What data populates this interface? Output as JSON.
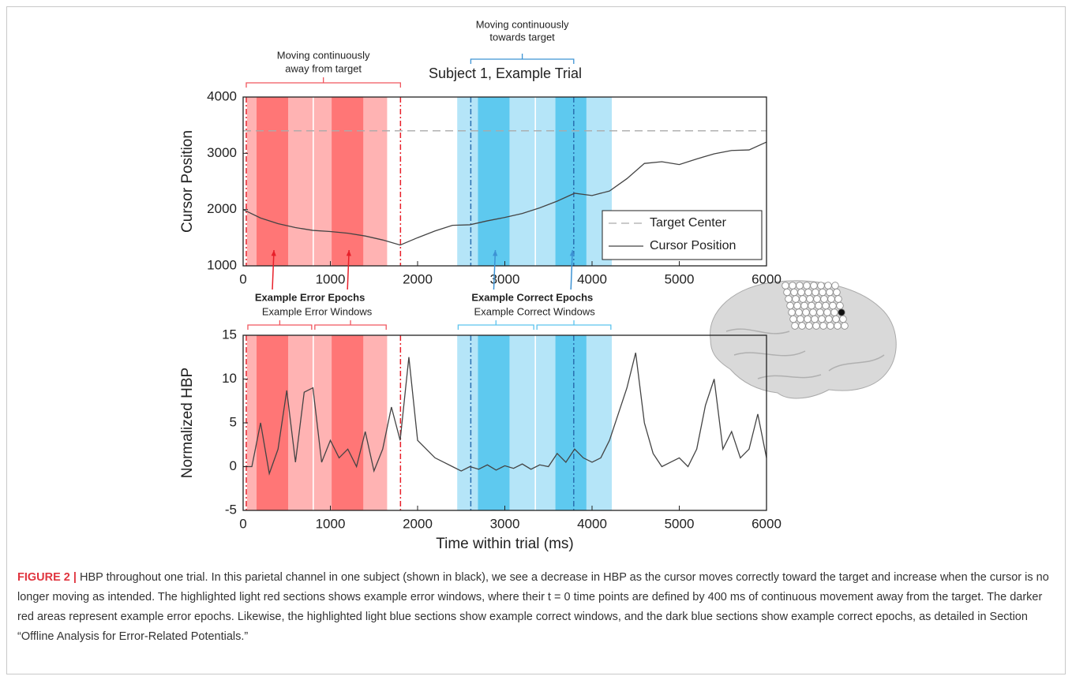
{
  "chart_data": [
    {
      "type": "line",
      "title": "Subject 1, Example Trial",
      "ylabel": "Cursor Position",
      "xlim": [
        0,
        6000
      ],
      "xticks": [
        0,
        1000,
        2000,
        3000,
        4000,
        5000,
        6000
      ],
      "ylim": [
        1000,
        4000
      ],
      "yticks": [
        1000,
        2000,
        3000,
        4000
      ],
      "legend": "lower right",
      "series": [
        {
          "name": "Target Center",
          "color": "#aaaaaa",
          "dashed": true,
          "x": [
            0,
            6000
          ],
          "values": [
            3400,
            3400
          ]
        },
        {
          "name": "Cursor Position",
          "color": "#444444",
          "dashed": false,
          "x": [
            0,
            200,
            400,
            600,
            800,
            1000,
            1200,
            1400,
            1600,
            1800,
            2000,
            2200,
            2400,
            2600,
            2800,
            3000,
            3200,
            3400,
            3600,
            3800,
            4000,
            4200,
            4400,
            4600,
            4800,
            5000,
            5200,
            5400,
            5600,
            5800,
            6000
          ],
          "values": [
            2000,
            1850,
            1750,
            1680,
            1630,
            1610,
            1580,
            1530,
            1460,
            1370,
            1500,
            1620,
            1720,
            1730,
            1800,
            1860,
            1930,
            2030,
            2150,
            2290,
            2250,
            2330,
            2550,
            2820,
            2850,
            2800,
            2900,
            2990,
            3050,
            3060,
            3200
          ]
        }
      ],
      "error_windows": [
        {
          "start": 36,
          "end": 804
        },
        {
          "start": 804,
          "end": 1658
        }
      ],
      "error_epochs": [
        {
          "start": 154,
          "end": 516
        },
        {
          "start": 1015,
          "end": 1377
        }
      ],
      "correct_windows": [
        {
          "start": 2447,
          "end": 3350
        },
        {
          "start": 3350,
          "end": 4234
        }
      ],
      "correct_epochs": [
        {
          "start": 2692,
          "end": 3054
        },
        {
          "start": 3580,
          "end": 3935
        }
      ],
      "error_onsets": [
        36,
        1804
      ],
      "correct_onsets": [
        2610,
        3790
      ],
      "error_color_light": "#ffb3b3",
      "error_color_dark": "#ff7676",
      "correct_color_light": "#b5e5f8",
      "correct_color_dark": "#5ec9ef",
      "away_label": [
        "Moving continuously",
        "away from target"
      ],
      "towards_label": [
        "Moving continuously",
        "towards target"
      ],
      "error_epochs_label": "Example Error Epochs",
      "correct_epochs_label": "Example Correct Epochs"
    },
    {
      "type": "line",
      "ylabel": "Normalized HBP",
      "xlabel": "Time within trial (ms)",
      "xlim": [
        0,
        6000
      ],
      "xticks": [
        0,
        1000,
        2000,
        3000,
        4000,
        5000,
        6000
      ],
      "ylim": [
        -5,
        15
      ],
      "yticks": [
        -5,
        0,
        5,
        10,
        15
      ],
      "series": [
        {
          "color": "#444444",
          "dashed": false,
          "x": [
            0,
            100,
            200,
            300,
            400,
            500,
            600,
            700,
            800,
            900,
            1000,
            1100,
            1200,
            1300,
            1400,
            1500,
            1600,
            1700,
            1800,
            1900,
            2000,
            2100,
            2200,
            2300,
            2400,
            2500,
            2600,
            2700,
            2800,
            2900,
            3000,
            3100,
            3200,
            3300,
            3400,
            3500,
            3600,
            3700,
            3800,
            3900,
            4000,
            4100,
            4200,
            4300,
            4400,
            4500,
            4600,
            4700,
            4800,
            4900,
            5000,
            5100,
            5200,
            5300,
            5400,
            5500,
            5600,
            5700,
            5800,
            5900,
            6000
          ],
          "values": [
            0,
            0,
            5,
            -0.8,
            2,
            8.7,
            0.5,
            8.5,
            9,
            0.5,
            3,
            1,
            2,
            0,
            4,
            -0.5,
            2,
            6.8,
            3,
            12.5,
            3,
            2,
            1,
            0.5,
            0,
            -0.5,
            0,
            -0.3,
            0.2,
            -0.4,
            0.1,
            -0.2,
            0.3,
            -0.3,
            0.2,
            0,
            1.5,
            0.5,
            2,
            1,
            0.5,
            1,
            3,
            6,
            9,
            13,
            5,
            1.5,
            0,
            0.5,
            1,
            0,
            2,
            7,
            10,
            2,
            4,
            1,
            2,
            6,
            1
          ]
        }
      ],
      "error_windows": [
        {
          "start": 36,
          "end": 804
        },
        {
          "start": 804,
          "end": 1658
        }
      ],
      "error_epochs": [
        {
          "start": 154,
          "end": 516
        },
        {
          "start": 1015,
          "end": 1377
        }
      ],
      "correct_windows": [
        {
          "start": 2447,
          "end": 3350
        },
        {
          "start": 3350,
          "end": 4234
        }
      ],
      "correct_epochs": [
        {
          "start": 2692,
          "end": 3054
        },
        {
          "start": 3580,
          "end": 3935
        }
      ],
      "error_onsets": [
        36,
        1804
      ],
      "correct_onsets": [
        2610,
        3790
      ],
      "error_color_light": "#ffb3b3",
      "error_color_dark": "#ff7676",
      "correct_color_light": "#b5e5f8",
      "correct_color_dark": "#5ec9ef",
      "error_windows_label": "Example Error Windows",
      "correct_windows_label": "Example Correct Windows"
    }
  ],
  "caption": {
    "label": "FIGURE 2 |",
    "text": "HBP throughout one trial. In this parietal channel in one subject (shown in black), we see a decrease in HBP as the cursor moves correctly toward the target and increase when the cursor is no longer moving as intended. The highlighted light red sections shows example error windows, where their t = 0 time points are defined by 400 ms of continuous movement away from the target. The darker red areas represent example error epochs. Likewise, the highlighted light blue sections show example correct windows, and the dark blue sections show example correct epochs, as detailed in Section “Offline Analysis for Error-Related Potentials.”"
  }
}
